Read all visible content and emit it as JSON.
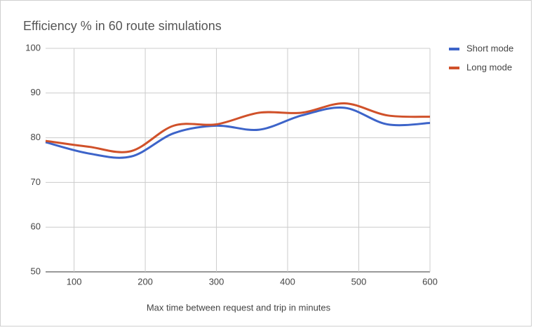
{
  "chart_data": {
    "type": "line",
    "title": "Efficiency % in 60 route simulations",
    "x_label": "Max time between request and trip in minutes",
    "x": [
      60,
      120,
      180,
      240,
      300,
      360,
      420,
      480,
      540,
      600
    ],
    "series": [
      {
        "name": "Short mode",
        "color": "#3d64c9",
        "values": [
          79,
          76.5,
          75.8,
          81,
          82.7,
          81.8,
          85,
          86.7,
          83,
          83.3
        ]
      },
      {
        "name": "Long mode",
        "color": "#d0512a",
        "values": [
          79.3,
          78,
          77,
          82.7,
          83,
          85.6,
          85.6,
          87.7,
          85,
          84.7
        ]
      }
    ],
    "xlim": [
      60,
      600
    ],
    "xticks": [
      100,
      200,
      300,
      400,
      500,
      600
    ],
    "ylim": [
      50,
      100
    ],
    "yticks": [
      50,
      60,
      70,
      80,
      90,
      100
    ],
    "grid": true,
    "smooth": true,
    "legend": "right"
  }
}
